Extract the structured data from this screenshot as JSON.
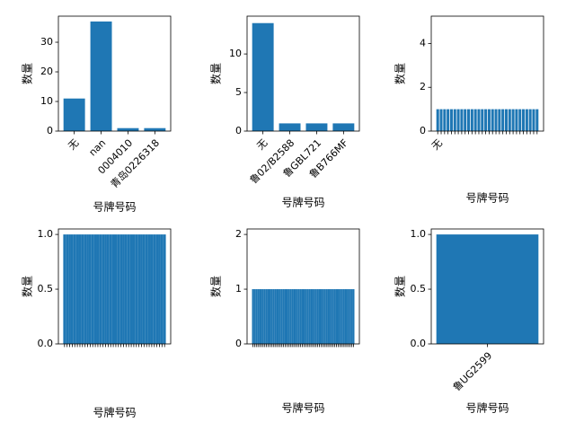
{
  "chart_data": [
    {
      "type": "bar",
      "xlabel": "号牌号码",
      "ylabel": "数量",
      "color": "#1f77b4",
      "categories": [
        "无",
        "nan",
        "0004010",
        "青岛0226318"
      ],
      "values": [
        11,
        37,
        1,
        1
      ],
      "ylim": [
        0,
        38.8
      ],
      "yticks": [
        0,
        10,
        20,
        30
      ]
    },
    {
      "type": "bar",
      "xlabel": "号牌号码",
      "ylabel": "数量",
      "color": "#1f77b4",
      "categories": [
        "无",
        "鲁02/B2588",
        "鲁GBL721",
        "鲁B766MF"
      ],
      "values": [
        14,
        1,
        1,
        1
      ],
      "ylim": [
        0,
        14.9
      ],
      "yticks": [
        0,
        5,
        10
      ]
    },
    {
      "type": "bar",
      "xlabel": "号牌号码",
      "ylabel": "数量",
      "color": "#1f77b4",
      "categories": [
        "无",
        null,
        null,
        null,
        null,
        null,
        null,
        null,
        null,
        null,
        null,
        null,
        null,
        null,
        null,
        null,
        null,
        null,
        null,
        null,
        null,
        null,
        null,
        null,
        null,
        null,
        null,
        null,
        null,
        null
      ],
      "values": [
        1,
        1,
        1,
        1,
        1,
        1,
        1,
        1,
        1,
        1,
        1,
        1,
        1,
        1,
        1,
        1,
        1,
        1,
        1,
        1,
        1,
        1,
        1,
        1,
        1,
        1,
        1,
        1,
        1,
        1
      ],
      "ylim": [
        0,
        5.25
      ],
      "yticks": [
        0,
        2,
        4
      ]
    },
    {
      "type": "bar",
      "xlabel": "号牌号码",
      "ylabel": "数量",
      "color": "#1f77b4",
      "categories": [
        null,
        null,
        null,
        null,
        null,
        null,
        null,
        null,
        null,
        null,
        null,
        null,
        null,
        null,
        null,
        null,
        null,
        null,
        null,
        null,
        null,
        null,
        null,
        null,
        null,
        null,
        null,
        null,
        null,
        null,
        null,
        null,
        null,
        null,
        null,
        null,
        null,
        null,
        null,
        null
      ],
      "values": [
        1,
        1,
        1,
        1,
        1,
        1,
        1,
        1,
        1,
        1,
        1,
        1,
        1,
        1,
        1,
        1,
        1,
        1,
        1,
        1,
        1,
        1,
        1,
        1,
        1,
        1,
        1,
        1,
        1,
        1,
        1,
        1,
        1,
        1,
        1,
        1,
        1,
        1,
        1,
        1
      ],
      "ylim": [
        0,
        1.05
      ],
      "yticks": [
        {
          "value": 0,
          "label": "0.0"
        },
        {
          "value": 0.5,
          "label": "0.5"
        },
        {
          "value": 1,
          "label": "1.0"
        }
      ]
    },
    {
      "type": "bar",
      "xlabel": "号牌号码",
      "ylabel": "数量",
      "color": "#1f77b4",
      "categories": [
        null,
        null,
        null,
        null,
        null,
        null,
        null,
        null,
        null,
        null,
        null,
        null,
        null,
        null,
        null,
        null,
        null,
        null,
        null,
        null,
        null,
        null,
        null,
        null,
        null,
        null,
        null,
        null,
        null,
        null,
        null,
        null,
        null,
        null,
        null,
        null,
        null,
        null,
        null,
        null,
        null,
        null,
        null,
        null,
        null,
        null,
        null,
        null,
        null,
        null,
        null,
        null,
        null,
        null,
        null,
        null,
        null,
        null,
        null,
        null
      ],
      "values": [
        1,
        1,
        1,
        1,
        1,
        1,
        1,
        1,
        1,
        1,
        1,
        1,
        1,
        1,
        1,
        1,
        1,
        1,
        1,
        1,
        1,
        1,
        1,
        1,
        1,
        1,
        1,
        1,
        1,
        1,
        1,
        1,
        1,
        1,
        1,
        1,
        1,
        1,
        1,
        1,
        1,
        1,
        1,
        1,
        1,
        1,
        1,
        1,
        1,
        1,
        1,
        1,
        1,
        1,
        1,
        1,
        1,
        1,
        1,
        1
      ],
      "ylim": [
        0,
        2.1
      ],
      "yticks": [
        0,
        1,
        2
      ]
    },
    {
      "type": "bar",
      "xlabel": "号牌号码",
      "ylabel": "数量",
      "color": "#1f77b4",
      "categories": [
        "鲁UG2599"
      ],
      "values": [
        1
      ],
      "ylim": [
        0,
        1.05
      ],
      "yticks": [
        {
          "value": 0,
          "label": "0.0"
        },
        {
          "value": 0.5,
          "label": "0.5"
        },
        {
          "value": 1,
          "label": "1.0"
        }
      ]
    }
  ]
}
